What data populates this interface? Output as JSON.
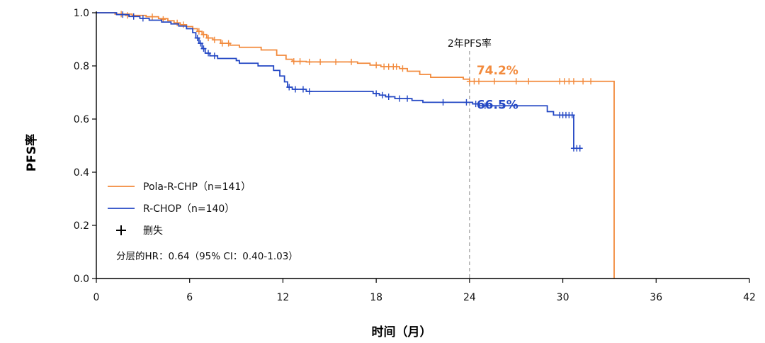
{
  "chart_data": {
    "type": "line",
    "xlabel": "时间（月）",
    "ylabel": "PFS率",
    "xlim": [
      0,
      42
    ],
    "ylim": [
      0,
      1.0
    ],
    "x_ticks": [
      0,
      6,
      12,
      18,
      24,
      30,
      36,
      42
    ],
    "y_ticks": [
      0.0,
      0.2,
      0.4,
      0.6,
      0.8,
      1.0
    ],
    "x_tick_labels": [
      "0",
      "6",
      "12",
      "18",
      "24",
      "30",
      "36",
      "42"
    ],
    "y_tick_labels": [
      "0.0",
      "0.2",
      "0.4",
      "0.6",
      "0.8",
      "1.0"
    ],
    "grid": false,
    "annotation": {
      "label": "2年PFS率",
      "x": 24
    },
    "series": [
      {
        "name": "Pola-R-CHP（n=141）",
        "color": "#F28A3C",
        "final_label": "74.2%",
        "steps": [
          [
            0,
            1.0
          ],
          [
            1.2,
            0.995
          ],
          [
            2.3,
            0.99
          ],
          [
            3.2,
            0.985
          ],
          [
            4.0,
            0.978
          ],
          [
            4.6,
            0.97
          ],
          [
            5.0,
            0.962
          ],
          [
            5.4,
            0.955
          ],
          [
            5.8,
            0.948
          ],
          [
            6.2,
            0.94
          ],
          [
            6.5,
            0.93
          ],
          [
            6.8,
            0.918
          ],
          [
            7.1,
            0.905
          ],
          [
            7.5,
            0.898
          ],
          [
            8.0,
            0.885
          ],
          [
            8.6,
            0.878
          ],
          [
            9.2,
            0.87
          ],
          [
            10.6,
            0.86
          ],
          [
            11.6,
            0.84
          ],
          [
            12.2,
            0.825
          ],
          [
            12.6,
            0.817
          ],
          [
            13.5,
            0.815
          ],
          [
            16.8,
            0.81
          ],
          [
            17.6,
            0.803
          ],
          [
            18.3,
            0.797
          ],
          [
            19.5,
            0.79
          ],
          [
            20.0,
            0.78
          ],
          [
            20.8,
            0.768
          ],
          [
            21.5,
            0.757
          ],
          [
            23.6,
            0.75
          ],
          [
            24.0,
            0.742
          ],
          [
            33.3,
            0.742
          ],
          [
            33.3,
            0.0
          ]
        ],
        "censors": [
          [
            1.6,
            0.995
          ],
          [
            2.0,
            0.99
          ],
          [
            3.6,
            0.985
          ],
          [
            4.3,
            0.975
          ],
          [
            5.2,
            0.962
          ],
          [
            5.6,
            0.955
          ],
          [
            6.6,
            0.93
          ],
          [
            6.9,
            0.918
          ],
          [
            7.2,
            0.905
          ],
          [
            7.6,
            0.898
          ],
          [
            8.1,
            0.885
          ],
          [
            8.5,
            0.885
          ],
          [
            12.7,
            0.817
          ],
          [
            13.1,
            0.817
          ],
          [
            13.7,
            0.815
          ],
          [
            14.4,
            0.815
          ],
          [
            15.4,
            0.815
          ],
          [
            16.4,
            0.815
          ],
          [
            18.0,
            0.803
          ],
          [
            18.5,
            0.797
          ],
          [
            18.8,
            0.797
          ],
          [
            19.1,
            0.797
          ],
          [
            19.3,
            0.797
          ],
          [
            19.7,
            0.79
          ],
          [
            24.0,
            0.742
          ],
          [
            24.3,
            0.742
          ],
          [
            24.6,
            0.742
          ],
          [
            25.6,
            0.742
          ],
          [
            27.0,
            0.742
          ],
          [
            27.8,
            0.742
          ],
          [
            29.8,
            0.742
          ],
          [
            30.1,
            0.742
          ],
          [
            30.4,
            0.742
          ],
          [
            30.7,
            0.742
          ],
          [
            31.3,
            0.742
          ],
          [
            31.8,
            0.742
          ]
        ]
      },
      {
        "name": "R-CHOP（n=140）",
        "color": "#2448C4",
        "final_label": "66.5%",
        "steps": [
          [
            0,
            1.0
          ],
          [
            1.3,
            0.993
          ],
          [
            2.1,
            0.986
          ],
          [
            2.8,
            0.979
          ],
          [
            3.4,
            0.972
          ],
          [
            4.2,
            0.965
          ],
          [
            4.8,
            0.958
          ],
          [
            5.3,
            0.95
          ],
          [
            5.8,
            0.94
          ],
          [
            6.2,
            0.925
          ],
          [
            6.4,
            0.905
          ],
          [
            6.6,
            0.885
          ],
          [
            6.8,
            0.865
          ],
          [
            7.0,
            0.848
          ],
          [
            7.3,
            0.838
          ],
          [
            7.8,
            0.828
          ],
          [
            9.0,
            0.82
          ],
          [
            9.2,
            0.81
          ],
          [
            10.4,
            0.8
          ],
          [
            11.4,
            0.783
          ],
          [
            11.8,
            0.762
          ],
          [
            12.1,
            0.74
          ],
          [
            12.3,
            0.72
          ],
          [
            12.6,
            0.712
          ],
          [
            13.5,
            0.704
          ],
          [
            17.8,
            0.696
          ],
          [
            18.2,
            0.69
          ],
          [
            18.6,
            0.684
          ],
          [
            19.2,
            0.677
          ],
          [
            20.3,
            0.67
          ],
          [
            21.0,
            0.663
          ],
          [
            24.2,
            0.657
          ],
          [
            24.6,
            0.65
          ],
          [
            29.0,
            0.628
          ],
          [
            29.4,
            0.615
          ],
          [
            30.7,
            0.615
          ],
          [
            30.7,
            0.49
          ],
          [
            31.2,
            0.49
          ]
        ],
        "censors": [
          [
            1.7,
            0.993
          ],
          [
            2.4,
            0.986
          ],
          [
            3.0,
            0.979
          ],
          [
            6.5,
            0.905
          ],
          [
            6.7,
            0.885
          ],
          [
            6.9,
            0.865
          ],
          [
            7.2,
            0.848
          ],
          [
            7.6,
            0.838
          ],
          [
            12.4,
            0.72
          ],
          [
            12.8,
            0.712
          ],
          [
            13.3,
            0.712
          ],
          [
            13.7,
            0.704
          ],
          [
            18.0,
            0.696
          ],
          [
            18.4,
            0.69
          ],
          [
            18.8,
            0.684
          ],
          [
            19.5,
            0.677
          ],
          [
            20.0,
            0.677
          ],
          [
            22.3,
            0.663
          ],
          [
            23.8,
            0.663
          ],
          [
            24.4,
            0.657
          ],
          [
            25.0,
            0.65
          ],
          [
            29.8,
            0.615
          ],
          [
            30.0,
            0.615
          ],
          [
            30.2,
            0.615
          ],
          [
            30.4,
            0.615
          ],
          [
            30.6,
            0.615
          ],
          [
            30.7,
            0.49
          ],
          [
            30.9,
            0.49
          ],
          [
            31.1,
            0.49
          ]
        ]
      }
    ],
    "legend": {
      "placement": "bottom-left",
      "entries": [
        {
          "label": "Pola-R-CHP（n=141）",
          "kind": "line",
          "color": "#F28A3C"
        },
        {
          "label": "R-CHOP（n=140）",
          "kind": "line",
          "color": "#2448C4"
        },
        {
          "label": "删失",
          "kind": "plus",
          "color": "#000000"
        }
      ]
    },
    "hr_text": "分层的HR：0.64（95% CI：0.40-1.03）"
  }
}
